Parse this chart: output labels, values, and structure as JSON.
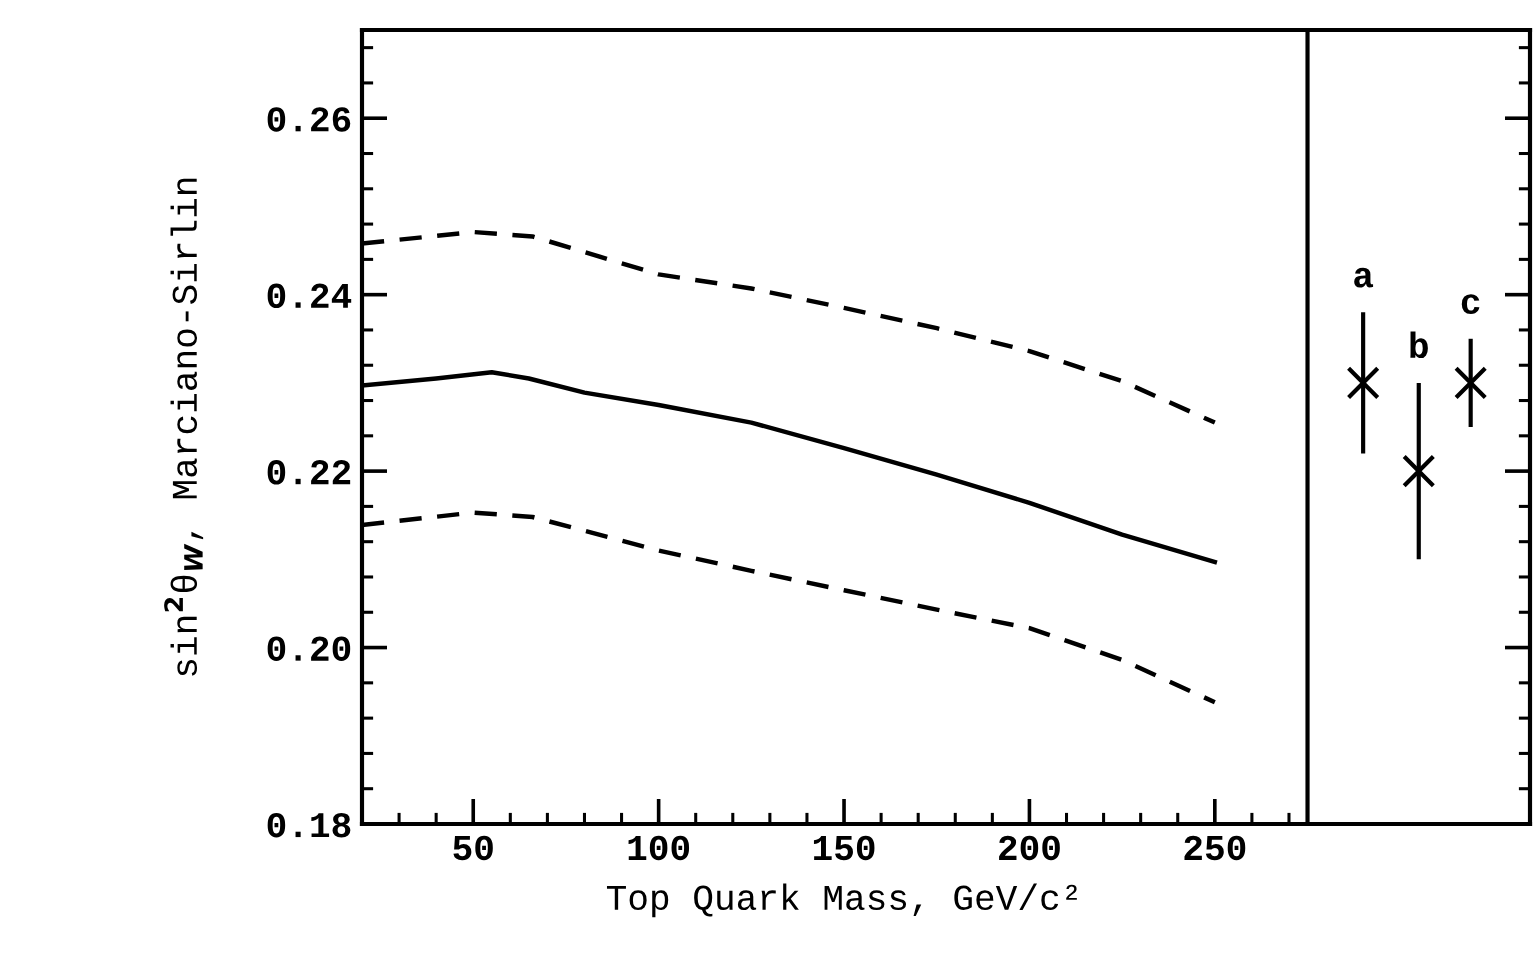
{
  "chart_data": {
    "type": "line",
    "xlabel": "Top Quark Mass, GeV/c²",
    "ylabel": "sin$^{2}$θ$_{W}$, Marciano-Sirlin",
    "xlim": [
      20,
      335
    ],
    "ylim": [
      0.18,
      0.27
    ],
    "xticks": [
      50,
      100,
      150,
      200,
      250,
      {
        "value": 30,
        "label": null
      },
      {
        "value": 40,
        "label": null
      },
      {
        "value": 60,
        "label": null
      },
      {
        "value": 70,
        "label": null
      },
      {
        "value": 80,
        "label": null
      },
      {
        "value": 90,
        "label": null
      },
      {
        "value": 110,
        "label": null
      },
      {
        "value": 120,
        "label": null
      },
      {
        "value": 130,
        "label": null
      },
      {
        "value": 140,
        "label": null
      },
      {
        "value": 160,
        "label": null
      },
      {
        "value": 170,
        "label": null
      },
      {
        "value": 180,
        "label": null
      },
      {
        "value": 190,
        "label": null
      },
      {
        "value": 210,
        "label": null
      },
      {
        "value": 220,
        "label": null
      },
      {
        "value": 230,
        "label": null
      },
      {
        "value": 240,
        "label": null
      },
      {
        "value": 260,
        "label": null
      },
      {
        "value": 270,
        "label": null
      }
    ],
    "yticks": [
      0.18,
      {
        "value": 0.2,
        "label": "0.20"
      },
      0.22,
      0.24,
      0.26,
      {
        "value": 0.184,
        "label": null
      },
      {
        "value": 0.188,
        "label": null
      },
      {
        "value": 0.192,
        "label": null
      },
      {
        "value": 0.196,
        "label": null
      },
      {
        "value": 0.204,
        "label": null
      },
      {
        "value": 0.208,
        "label": null
      },
      {
        "value": 0.212,
        "label": null
      },
      {
        "value": 0.216,
        "label": null
      },
      {
        "value": 0.224,
        "label": null
      },
      {
        "value": 0.228,
        "label": null
      },
      {
        "value": 0.232,
        "label": null
      },
      {
        "value": 0.236,
        "label": null
      },
      {
        "value": 0.244,
        "label": null
      },
      {
        "value": 0.248,
        "label": null
      },
      {
        "value": 0.252,
        "label": null
      },
      {
        "value": 0.256,
        "label": null
      },
      {
        "value": 0.264,
        "label": null
      },
      {
        "value": 0.268,
        "label": null
      }
    ],
    "grid": false,
    "marker": "none",
    "ref_lines": [
      {
        "axis": "x",
        "value": 275,
        "color": "#000000",
        "line_style": "solid"
      }
    ],
    "series": [
      {
        "color": "#000000",
        "line_style": "solid",
        "x": [
          20,
          40,
          55,
          65,
          80,
          100,
          125,
          150,
          175,
          200,
          225,
          250
        ],
        "values": [
          0.2297,
          0.2305,
          0.2312,
          0.2305,
          0.2289,
          0.2275,
          0.2255,
          0.2226,
          0.2196,
          0.2164,
          0.2128,
          0.2097
        ]
      },
      {
        "color": "#000000",
        "line_style": "dashed",
        "x": [
          20,
          50,
          66,
          100,
          125,
          150,
          175,
          200,
          225,
          250
        ],
        "values": [
          0.2458,
          0.2471,
          0.2466,
          0.2423,
          0.2407,
          0.2385,
          0.2362,
          0.2336,
          0.2302,
          0.2255
        ]
      },
      {
        "color": "#000000",
        "line_style": "dashed",
        "x": [
          20,
          50,
          66,
          100,
          125,
          150,
          175,
          200,
          225,
          250
        ],
        "values": [
          0.2139,
          0.2153,
          0.2148,
          0.211,
          0.2087,
          0.2065,
          0.2043,
          0.2022,
          0.1986,
          0.1938
        ]
      },
      {
        "type": "scatter",
        "marker": "cross",
        "name": "a",
        "color": "#000000",
        "x": [
          290
        ],
        "values": [
          0.23
        ],
        "errors": [
          0.008
        ]
      },
      {
        "type": "scatter",
        "marker": "cross",
        "name": "b",
        "color": "#000000",
        "x": [
          305
        ],
        "values": [
          0.22
        ],
        "errors": [
          0.01
        ]
      },
      {
        "type": "scatter",
        "marker": "cross",
        "name": "c",
        "color": "#000000",
        "x": [
          319
        ],
        "values": [
          0.23
        ],
        "errors": [
          0.005
        ]
      }
    ]
  }
}
